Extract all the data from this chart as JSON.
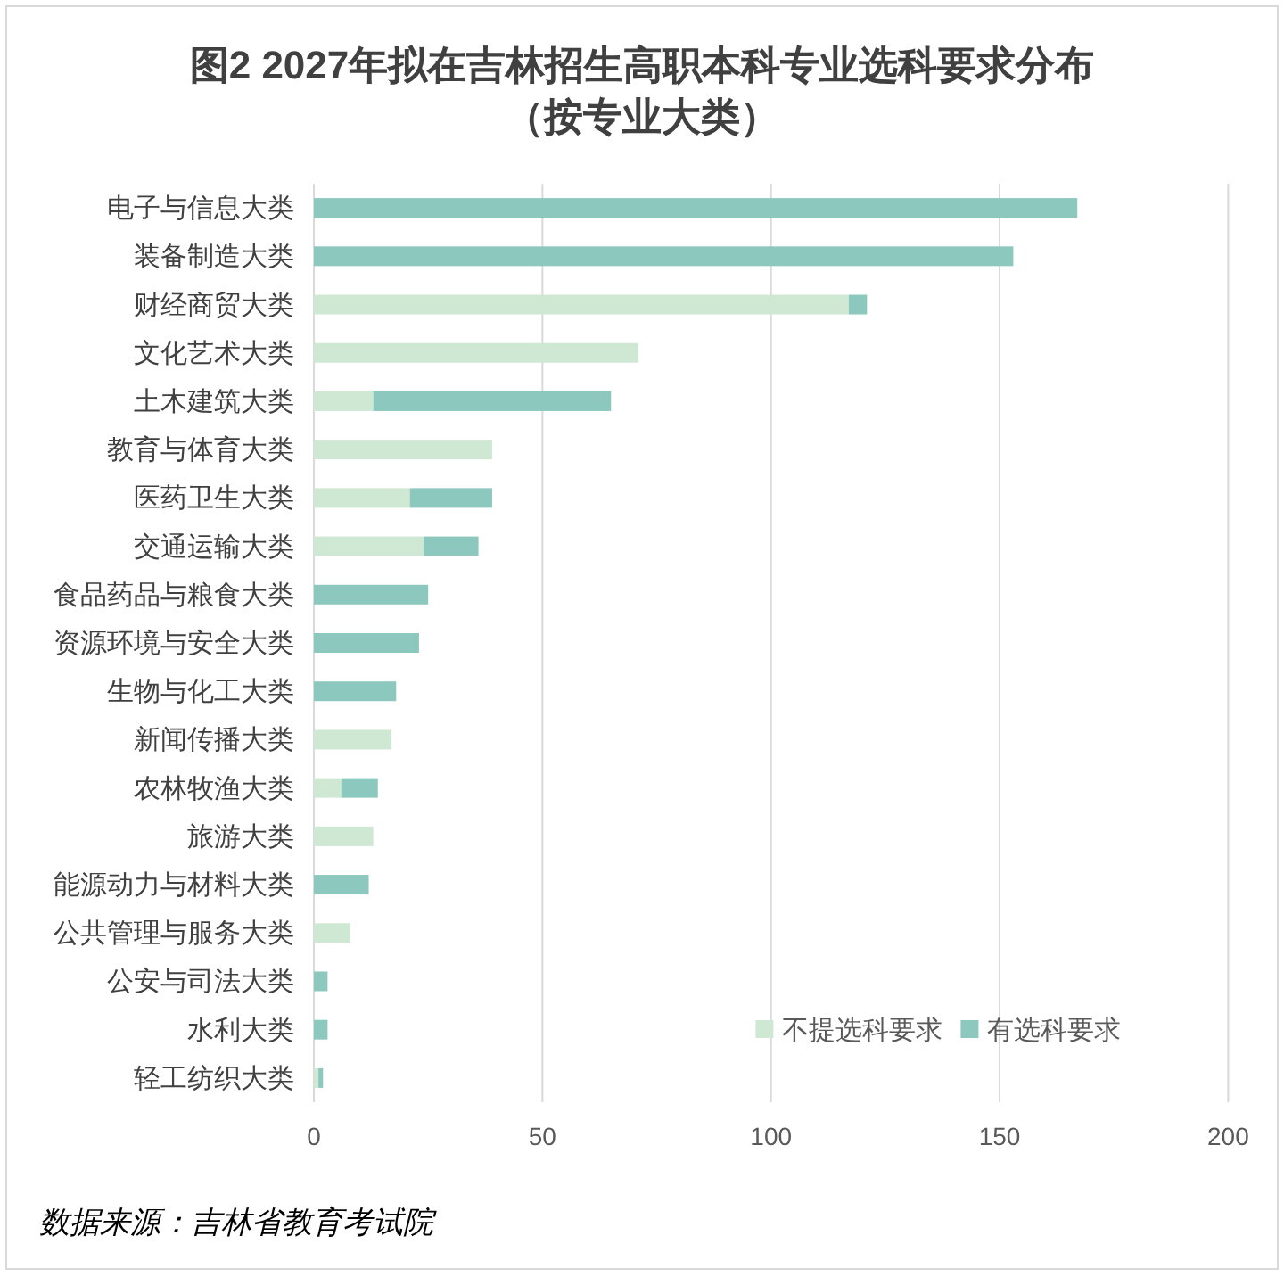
{
  "chart_data": {
    "type": "bar",
    "orientation": "horizontal",
    "stacked": true,
    "title": "图2 2027年拟在吉林招生高职本科专业选科要求分布",
    "subtitle": "（按专业大类）",
    "categories": [
      "电子与信息大类",
      "装备制造大类",
      "财经商贸大类",
      "文化艺术大类",
      "土木建筑大类",
      "教育与体育大类",
      "医药卫生大类",
      "交通运输大类",
      "食品药品与粮食大类",
      "资源环境与安全大类",
      "生物与化工大类",
      "新闻传播大类",
      "农林牧渔大类",
      "旅游大类",
      "能源动力与材料大类",
      "公共管理与服务大类",
      "公安与司法大类",
      "水利大类",
      "轻工纺织大类"
    ],
    "series": [
      {
        "name": "不提选科要求",
        "color": "#cfe8d3",
        "values": [
          0,
          0,
          117,
          71,
          13,
          39,
          21,
          24,
          0,
          0,
          0,
          17,
          6,
          13,
          0,
          8,
          0,
          0,
          1
        ]
      },
      {
        "name": "有选科要求",
        "color": "#8cc8be",
        "values": [
          167,
          153,
          4,
          0,
          52,
          0,
          18,
          12,
          25,
          23,
          18,
          0,
          8,
          0,
          12,
          0,
          3,
          3,
          1
        ]
      }
    ],
    "xlim": [
      0,
      200
    ],
    "xticks": [
      0,
      50,
      100,
      150,
      200
    ],
    "grid": "x",
    "legend": "bottom right",
    "annotations": [
      "数据来源：吉林省教育考试院"
    ]
  }
}
